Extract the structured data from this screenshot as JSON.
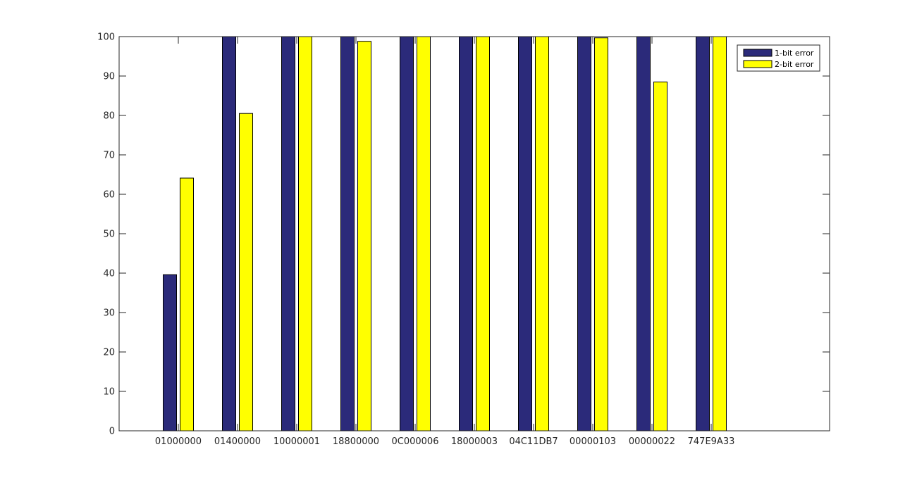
{
  "chart_data": {
    "type": "bar",
    "title": "",
    "xlabel": "",
    "ylabel": "",
    "categories": [
      "01000000",
      "01400000",
      "10000001",
      "18800000",
      "0C000006",
      "18000003",
      "04C11DB7",
      "00000103",
      "00000022",
      "747E9A33"
    ],
    "series": [
      {
        "name": "1-bit error",
        "color": "#2b2a7a",
        "values": [
          39.6,
          100,
          100,
          100,
          100,
          100,
          100,
          100,
          100,
          100
        ]
      },
      {
        "name": "2-bit error",
        "color": "#ffff00",
        "values": [
          64.1,
          80.5,
          100,
          98.8,
          100,
          100,
          100,
          99.7,
          88.5,
          100
        ]
      }
    ],
    "ylim": [
      0,
      100
    ],
    "yticks": [
      0,
      10,
      20,
      30,
      40,
      50,
      60,
      70,
      80,
      90,
      100
    ],
    "xlim": [
      0,
      12
    ],
    "grid": false,
    "legend_position": "top-right"
  }
}
